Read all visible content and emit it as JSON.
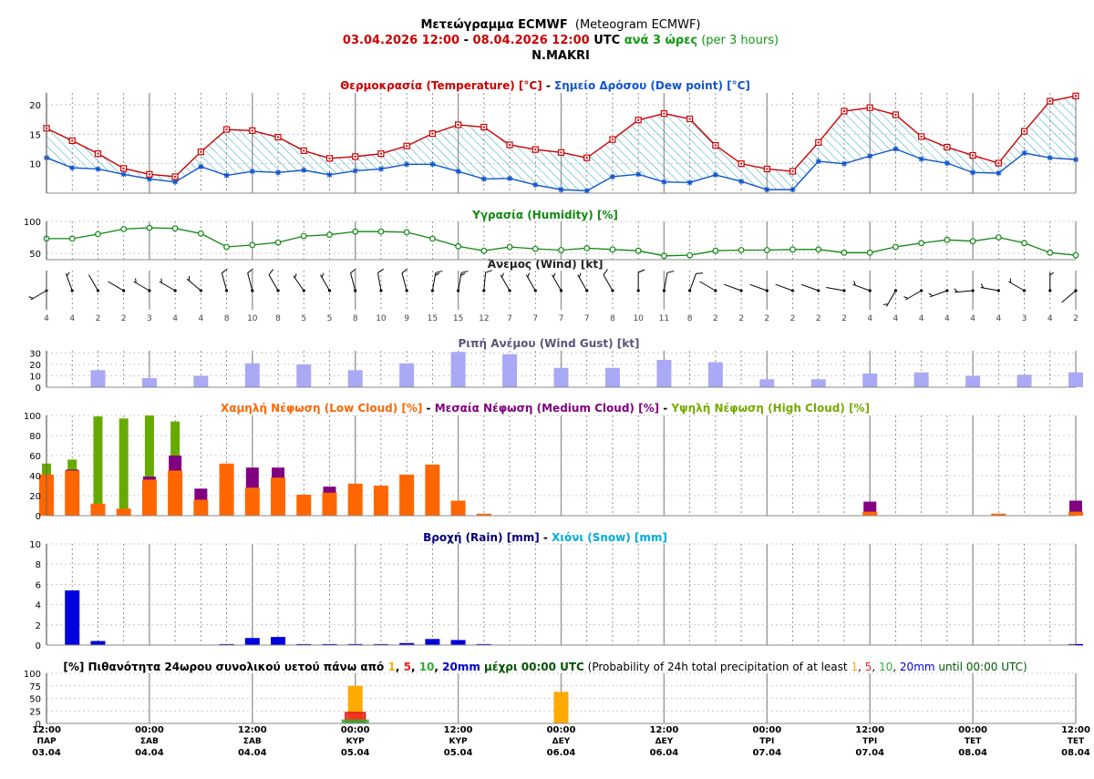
{
  "header": {
    "title_gr": "Μετεώγραμμα ECMWF",
    "title_en": "(Meteogram ECMWF)",
    "range_start": "03.04.2026 12:00",
    "range_sep": " - ",
    "range_end": "08.04.2026 12:00",
    "utc": " UTC ",
    "step_gr": "ανά 3 ώρες",
    "step_en": " (per 3 hours)",
    "location": "N.MAKRI"
  },
  "colors": {
    "temperature": "#cc0000",
    "dew_point": "#1155cc",
    "humidity": "#118811",
    "wind_gust": "#a9a9f5",
    "low_cloud": "#ff6600",
    "medium_cloud": "#800080",
    "high_cloud": "#66aa00",
    "rain": "#0000dd",
    "snow": "#00aadd",
    "p1": "#ffaa00",
    "p5": "#ee2222",
    "p10": "#33aa33",
    "p20": "#0000cc",
    "grid": "#999999"
  },
  "panels": {
    "temp": {
      "title_temp": "Θερμοκρασία (Temperature) [°C]",
      "sep": " - ",
      "title_dew": "Σημείο Δρόσου (Dew point) [°C]"
    },
    "hum": {
      "title": "Υγρασία (Humidity) [%]"
    },
    "wind": {
      "title": "Άνεμος (Wind) [kt]"
    },
    "gust": {
      "title": "Ριπή Ανέμου (Wind Gust) [kt]"
    },
    "cloud": {
      "low": "Χαμηλή Νέφωση (Low Cloud) [%]",
      "sep": " - ",
      "medium": "Μεσαία Νέφωση (Medium Cloud) [%]",
      "high": "Υψηλή Νέφωση (High Cloud) [%]"
    },
    "rain": {
      "rain": "Βροχή (Rain) [mm]",
      "sep": " - ",
      "snow": "Χιόνι (Snow) [mm]"
    },
    "prob": {
      "p0": "[%] Πιθανότητα 24ωρου συνολικού υετού πάνω από ",
      "t1": "1",
      "c1": ", ",
      "t5": "5",
      "c2": ", ",
      "t10": "10",
      "c3": ", ",
      "t20": "20mm",
      "p1": " μέχρι 00:00 UTC",
      "p2": " (Probability of 24h total precipitation of at least ",
      "e1": "1",
      "ec1": ", ",
      "e5": "5",
      "ec2": ", ",
      "e10": "10",
      "ec3": ", ",
      "e20": "20mm",
      "p3": " until 00:00 UTC)"
    }
  },
  "chart_data": [
    {
      "type": "line",
      "title": "Θερμοκρασία (Temperature) [°C] - Σημείο Δρόσου (Dew point) [°C]",
      "ylim": [
        5,
        22
      ],
      "yticks": [
        10,
        15,
        20
      ],
      "series": [
        {
          "name": "Θερμοκρασία (Temperature) [°C]",
          "values": [
            16,
            13.9,
            11.7,
            9.2,
            8.2,
            7.8,
            12,
            15.8,
            15.6,
            14.5,
            12.2,
            10.9,
            11.2,
            11.7,
            13,
            15.1,
            16.6,
            16.2,
            13.2,
            12.4,
            11.9,
            11,
            14.1,
            17.4,
            18.5,
            17.6,
            13.1,
            10,
            9.1,
            8.7,
            13.6,
            18.9,
            19.5,
            18.3,
            14.6,
            12.8,
            11.4,
            10.1,
            15.5,
            20.6,
            21.5
          ]
        },
        {
          "name": "Σημείο Δρόσου (Dew point) [°C]",
          "values": [
            11,
            9.3,
            9.1,
            8.2,
            7.4,
            6.9,
            9.5,
            8,
            8.7,
            8.5,
            8.9,
            8.1,
            8.8,
            9.1,
            9.9,
            9.9,
            8.7,
            7.4,
            7.5,
            6.4,
            5.6,
            5.4,
            7.8,
            8.2,
            6.9,
            6.8,
            8.1,
            7,
            5.6,
            5.6,
            10.4,
            10,
            11.3,
            12.5,
            10.8,
            10.1,
            8.5,
            8.4,
            11.8,
            11,
            10.7
          ]
        }
      ]
    },
    {
      "type": "line",
      "title": "Υγρασία (Humidity) [%]",
      "ylim": [
        40,
        100
      ],
      "yticks": [
        50,
        100
      ],
      "series": [
        {
          "name": "Υγρασία (Humidity) [%]",
          "values": [
            73,
            73,
            80,
            88,
            90,
            89,
            81,
            60,
            63,
            67,
            77,
            79,
            84,
            84,
            83,
            73,
            61,
            54,
            60,
            57,
            55,
            58,
            56,
            54,
            46,
            47,
            54,
            55,
            55,
            56,
            56,
            51,
            51,
            60,
            66,
            71,
            69,
            75,
            66,
            51,
            47
          ]
        }
      ]
    },
    {
      "type": "table",
      "title": "Άνεμος (Wind) [kt]",
      "speeds": [
        4,
        4,
        2,
        2,
        3,
        4,
        4,
        8,
        10,
        8,
        5,
        5,
        8,
        10,
        9,
        15,
        15,
        12,
        7,
        7,
        7,
        7,
        8,
        10,
        11,
        8,
        2,
        2,
        2,
        2,
        2,
        2,
        4,
        4,
        4,
        4,
        4,
        4,
        3,
        4,
        2
      ],
      "directions_deg": [
        240,
        340,
        330,
        300,
        300,
        300,
        310,
        345,
        345,
        330,
        325,
        330,
        345,
        350,
        345,
        10,
        10,
        5,
        330,
        330,
        330,
        330,
        330,
        0,
        10,
        20,
        300,
        290,
        290,
        290,
        290,
        280,
        290,
        210,
        240,
        250,
        265,
        280,
        300,
        0,
        230
      ]
    },
    {
      "type": "bar",
      "title": "Ριπή Ανέμου (Wind Gust) [kt]",
      "ylim": [
        0,
        32
      ],
      "yticks": [
        0,
        10,
        20,
        30
      ],
      "indices": [
        2,
        4,
        6,
        8,
        10,
        12,
        14,
        16,
        18,
        20,
        22,
        24,
        26,
        28,
        30,
        32,
        34,
        36,
        38,
        40
      ],
      "values": [
        15,
        8,
        10,
        21,
        20,
        15,
        21,
        31,
        29,
        17,
        17,
        24,
        22,
        7,
        7,
        12,
        13,
        10,
        11,
        13
      ]
    },
    {
      "type": "bar",
      "title": "Χαμηλή Νέφωση (Low Cloud) [%] - Μεσαία Νέφωση (Medium Cloud) [%] - Υψηλή Νέφωση (High Cloud) [%]",
      "ylim": [
        0,
        100
      ],
      "yticks": [
        0,
        20,
        40,
        60,
        80,
        100
      ],
      "series": [
        {
          "name": "Χαμηλή Νέφωση (Low Cloud) [%]",
          "values": [
            41,
            45,
            12,
            7,
            36,
            45,
            16,
            52,
            28,
            38,
            21,
            23,
            32,
            30,
            41,
            51,
            15,
            2,
            0,
            0,
            0,
            0,
            0,
            0,
            0,
            0,
            0,
            0,
            0,
            0,
            0,
            0,
            4,
            0,
            0,
            0,
            0,
            2,
            0,
            0,
            4
          ]
        },
        {
          "name": "Μεσαία Νέφωση (Medium Cloud) [%]",
          "values": [
            0,
            46,
            0,
            0,
            39,
            60,
            27,
            0,
            48,
            48,
            0,
            29,
            0,
            0,
            0,
            0,
            0,
            0,
            0,
            0,
            0,
            0,
            0,
            0,
            0,
            0,
            0,
            0,
            0,
            0,
            0,
            0,
            14,
            0,
            0,
            0,
            0,
            0,
            0,
            0,
            15
          ]
        },
        {
          "name": "Υψηλή Νέφωση (High Cloud) [%]",
          "values": [
            52,
            56,
            99,
            97,
            100,
            94,
            0,
            0,
            0,
            0,
            0,
            0,
            0,
            0,
            0,
            0,
            0,
            0,
            0,
            0,
            0,
            0,
            0,
            0,
            0,
            0,
            0,
            0,
            0,
            0,
            0,
            0,
            0,
            0,
            0,
            0,
            0,
            0,
            0,
            0,
            0
          ]
        }
      ]
    },
    {
      "type": "bar",
      "title": "Βροχή (Rain) [mm] - Χιόνι (Snow) [mm]",
      "ylim": [
        0,
        10
      ],
      "yticks": [
        0,
        2,
        4,
        6,
        8,
        10
      ],
      "series": [
        {
          "name": "Βροχή (Rain) [mm]",
          "values": [
            0,
            5.4,
            0.4,
            0,
            0,
            0,
            0,
            0.1,
            0.7,
            0.8,
            0.1,
            0.1,
            0.1,
            0.1,
            0.2,
            0.6,
            0.5,
            0.1,
            0,
            0,
            0,
            0,
            0,
            0,
            0,
            0,
            0,
            0,
            0,
            0,
            0,
            0,
            0,
            0,
            0,
            0,
            0,
            0,
            0,
            0,
            0.1
          ]
        },
        {
          "name": "Χιόνι (Snow) [mm]",
          "values": [
            0,
            0,
            0,
            0,
            0,
            0,
            0,
            0,
            0,
            0,
            0,
            0,
            0,
            0,
            0,
            0,
            0,
            0,
            0,
            0,
            0,
            0,
            0,
            0,
            0,
            0,
            0,
            0,
            0,
            0,
            0,
            0,
            0,
            0,
            0,
            0,
            0,
            0,
            0,
            0,
            0
          ]
        }
      ]
    },
    {
      "type": "bar",
      "title": "[%] Πιθανότητα 24ωρου συνολικού υετού πάνω από 1, 5, 10, 20mm μέχρι 00:00 UTC (Probability of 24h total precipitation of at least 1, 5, 10, 20mm until 00:00 UTC)",
      "ylim": [
        0,
        100
      ],
      "yticks": [
        0,
        25,
        50,
        75,
        100
      ],
      "categories": [
        "05.04 00:00",
        "06.04 00:00"
      ],
      "series": [
        {
          "name": "1",
          "values": [
            75,
            63
          ]
        },
        {
          "name": "5",
          "values": [
            22,
            0
          ]
        },
        {
          "name": "10",
          "values": [
            8,
            0
          ]
        },
        {
          "name": "20mm",
          "values": [
            0,
            0
          ]
        }
      ]
    }
  ],
  "x_axis": {
    "ticks": [
      {
        "i": 0,
        "time": "12:00",
        "day": "ΠΑΡ",
        "date": "03.04"
      },
      {
        "i": 4,
        "time": "00:00",
        "day": "ΣΑΒ",
        "date": "04.04"
      },
      {
        "i": 8,
        "time": "12:00",
        "day": "ΣΑΒ",
        "date": "04.04"
      },
      {
        "i": 12,
        "time": "00:00",
        "day": "ΚΥΡ",
        "date": "05.04"
      },
      {
        "i": 16,
        "time": "12:00",
        "day": "ΚΥΡ",
        "date": "05.04"
      },
      {
        "i": 20,
        "time": "00:00",
        "day": "ΔΕΥ",
        "date": "06.04"
      },
      {
        "i": 24,
        "time": "12:00",
        "day": "ΔΕΥ",
        "date": "06.04"
      },
      {
        "i": 28,
        "time": "00:00",
        "day": "ΤΡΙ",
        "date": "07.04"
      },
      {
        "i": 32,
        "time": "12:00",
        "day": "ΤΡΙ",
        "date": "07.04"
      },
      {
        "i": 36,
        "time": "00:00",
        "day": "ΤΕΤ",
        "date": "08.04"
      },
      {
        "i": 40,
        "time": "12:00",
        "day": "ΤΕΤ",
        "date": "08.04"
      }
    ]
  }
}
